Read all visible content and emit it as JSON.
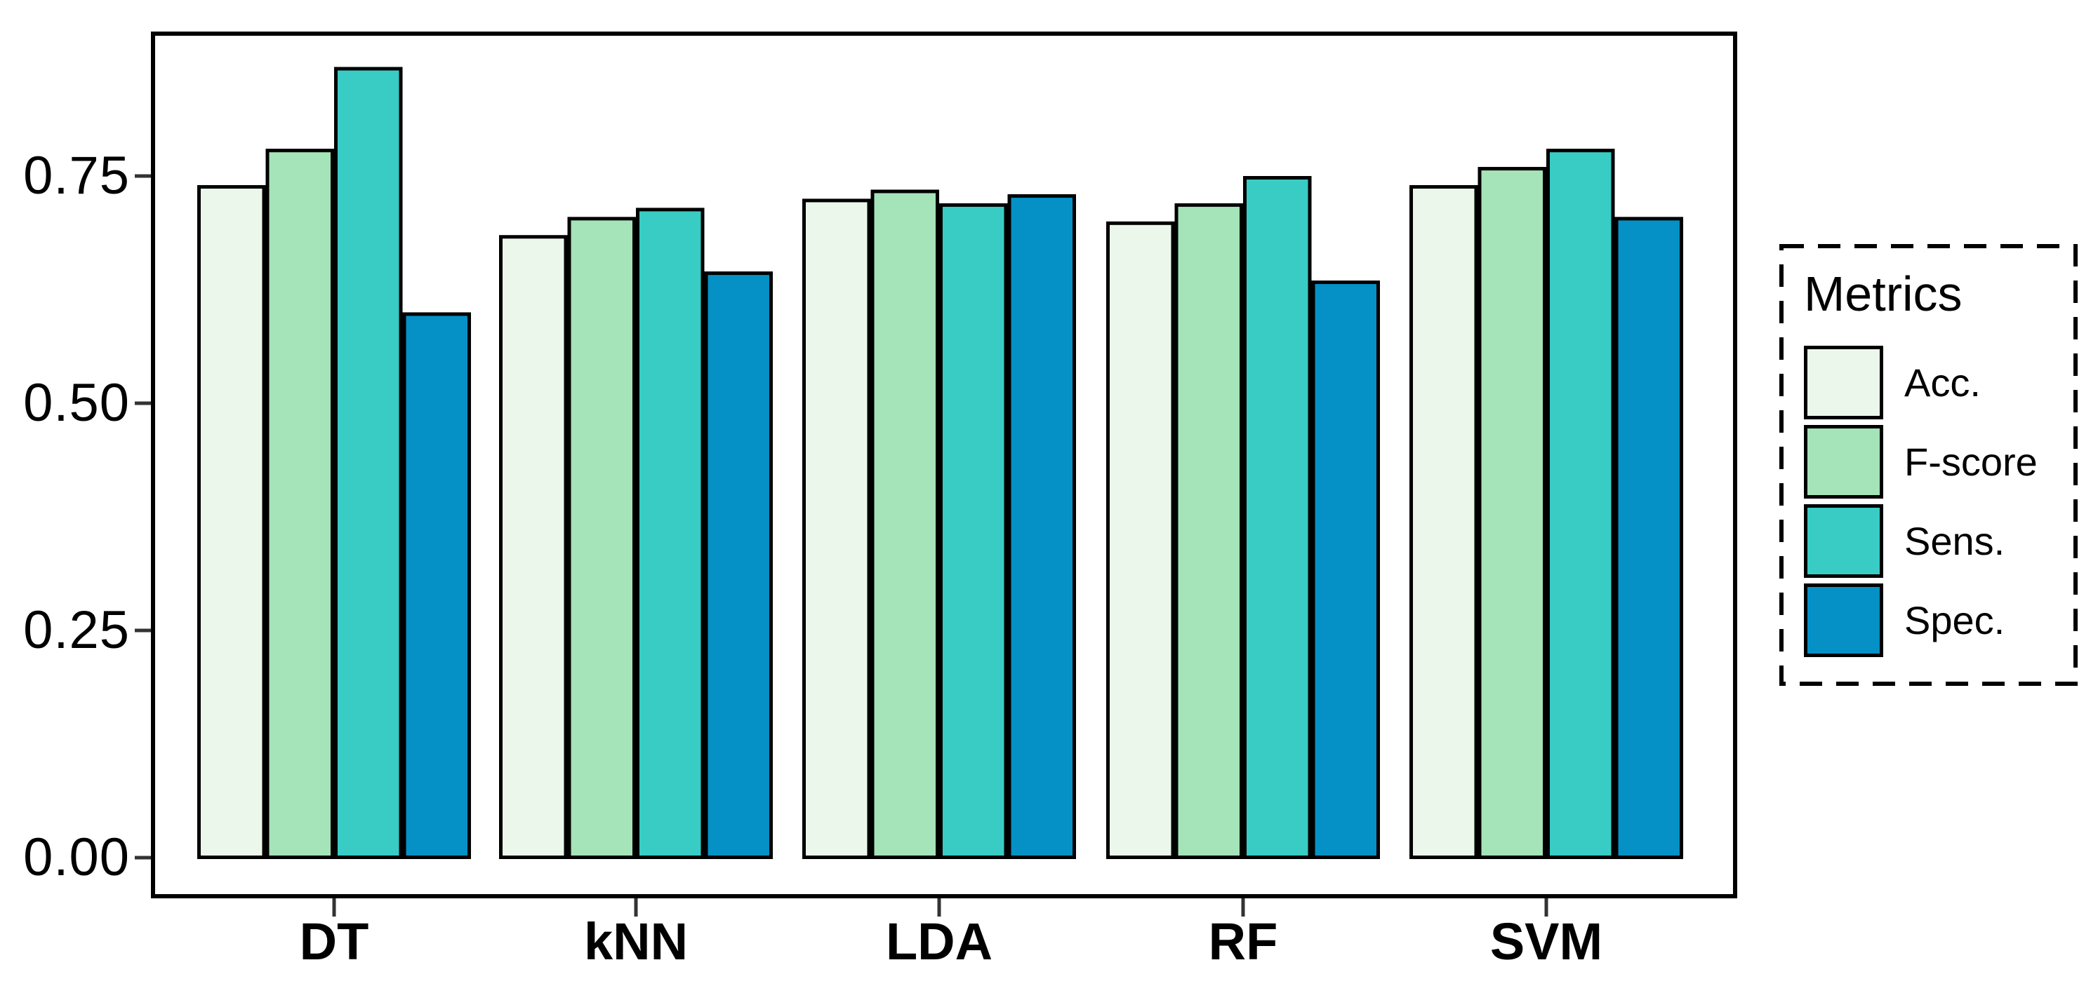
{
  "chart_data": {
    "type": "bar",
    "title": "",
    "xlabel": "",
    "ylabel": "",
    "categories": [
      "DT",
      "kNN",
      "LDA",
      "RF",
      "SVM"
    ],
    "series": [
      {
        "name": "Acc.",
        "color": "#EBF7EA",
        "values": [
          0.74,
          0.685,
          0.725,
          0.7,
          0.74
        ]
      },
      {
        "name": "F-score",
        "color": "#A5E3B8",
        "values": [
          0.78,
          0.705,
          0.735,
          0.72,
          0.76
        ]
      },
      {
        "name": "Sens.",
        "color": "#38CCC5",
        "values": [
          0.87,
          0.715,
          0.72,
          0.75,
          0.78
        ]
      },
      {
        "name": "Spec.",
        "color": "#0590C6",
        "values": [
          0.6,
          0.645,
          0.73,
          0.635,
          0.705
        ]
      }
    ],
    "y_ticks": [
      {
        "value": 0.0,
        "label": "0.00"
      },
      {
        "value": 0.25,
        "label": "0.25"
      },
      {
        "value": 0.5,
        "label": "0.50"
      },
      {
        "value": 0.75,
        "label": "0.75"
      }
    ],
    "ylim": [
      0,
      0.9
    ],
    "grid": false,
    "bar_border_color": "#000000",
    "background": "#FFFFFF",
    "legend": {
      "title": "Metrics",
      "position": "right",
      "border": "dashed"
    }
  }
}
